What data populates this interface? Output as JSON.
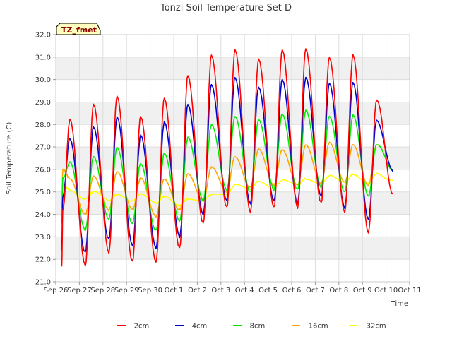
{
  "chart_data": {
    "type": "line",
    "title": "Tonzi Soil Temperature Set D",
    "xlabel": "Time",
    "ylabel": "Soil Temperature (C)",
    "badge": "TZ_fmet",
    "ylim": [
      21.0,
      32.0
    ],
    "yticks": [
      "21.0",
      "22.0",
      "23.0",
      "24.0",
      "25.0",
      "26.0",
      "27.0",
      "28.0",
      "29.0",
      "30.0",
      "31.0",
      "32.0"
    ],
    "xlim": [
      0,
      15
    ],
    "xtick_labels": [
      "Sep 26",
      "Sep 27",
      "Sep 28",
      "Sep 29",
      "Sep 30",
      "Oct 1",
      "Oct 2",
      "Oct 3",
      "Oct 4",
      "Oct 5",
      "Oct 6",
      "Oct 7",
      "Oct 8",
      "Oct 9",
      "Oct 10",
      "Oct 11"
    ],
    "grid": true,
    "legend_position": "bottom",
    "x_unit": "days since Sep 26 00:00",
    "daily_extremes": {
      "peak_time_offset_days": 0.6,
      "trough_time_offset_days": 0.25,
      "note": "per series: daily peak (max) and trough (min) values, one per day"
    },
    "series": [
      {
        "name": "-2cm",
        "color": "#ff0000",
        "start": [
          0.3,
          24.2
        ],
        "peaks": [
          28.2,
          28.9,
          29.3,
          28.4,
          29.2,
          30.2,
          31.1,
          31.3,
          30.9,
          31.3,
          31.4,
          31.0,
          31.1,
          29.1
        ],
        "troughs": [
          21.7,
          21.7,
          22.3,
          21.9,
          21.9,
          22.5,
          23.6,
          24.3,
          24.1,
          24.3,
          24.3,
          24.5,
          24.1,
          23.2
        ],
        "end": [
          14.3,
          24.9
        ]
      },
      {
        "name": "-4cm",
        "color": "#0000cc",
        "start": [
          0.3,
          24.8
        ],
        "peaks": [
          27.4,
          27.9,
          28.3,
          27.5,
          28.1,
          28.9,
          29.8,
          30.1,
          29.7,
          30.0,
          30.1,
          29.8,
          29.9,
          28.2
        ],
        "troughs": [
          22.4,
          22.3,
          22.9,
          22.6,
          22.5,
          23.0,
          24.0,
          24.6,
          24.5,
          24.6,
          24.5,
          24.8,
          24.3,
          23.8
        ],
        "end": [
          14.3,
          25.9
        ]
      },
      {
        "name": "-8cm",
        "color": "#00ee00",
        "start": [
          0.3,
          25.6
        ],
        "peaks": [
          26.3,
          26.6,
          27.0,
          26.3,
          26.7,
          27.4,
          28.0,
          28.4,
          28.2,
          28.5,
          28.6,
          28.4,
          28.4,
          27.1
        ],
        "troughs": [
          23.6,
          23.3,
          23.8,
          23.6,
          23.3,
          23.7,
          24.6,
          25.1,
          25.0,
          25.1,
          25.1,
          25.2,
          25.0,
          24.8
        ],
        "end": [
          14.3,
          26.0
        ]
      },
      {
        "name": "-16cm",
        "color": "#ffa500",
        "start": [
          0.3,
          26.0
        ],
        "peaks": [
          25.6,
          25.7,
          25.9,
          25.6,
          25.6,
          25.8,
          26.1,
          26.6,
          26.9,
          26.9,
          27.1,
          27.2,
          27.1,
          27.1
        ],
        "troughs": [
          24.3,
          24.0,
          24.2,
          24.2,
          23.9,
          24.2,
          24.6,
          25.0,
          25.2,
          25.3,
          25.3,
          25.4,
          25.4,
          25.3
        ],
        "end": [
          14.3,
          26.0
        ]
      },
      {
        "name": "-32cm",
        "color": "#ffff00",
        "start": [
          0.3,
          25.3
        ],
        "peaks": [
          25.1,
          25.0,
          24.9,
          24.9,
          24.8,
          24.7,
          24.9,
          25.3,
          25.5,
          25.5,
          25.6,
          25.7,
          25.8,
          25.8
        ],
        "troughs": [
          24.9,
          24.7,
          24.6,
          24.6,
          24.5,
          24.4,
          24.6,
          24.9,
          25.1,
          25.2,
          25.3,
          25.4,
          25.4,
          25.4
        ],
        "end": [
          14.3,
          25.5
        ]
      }
    ]
  }
}
